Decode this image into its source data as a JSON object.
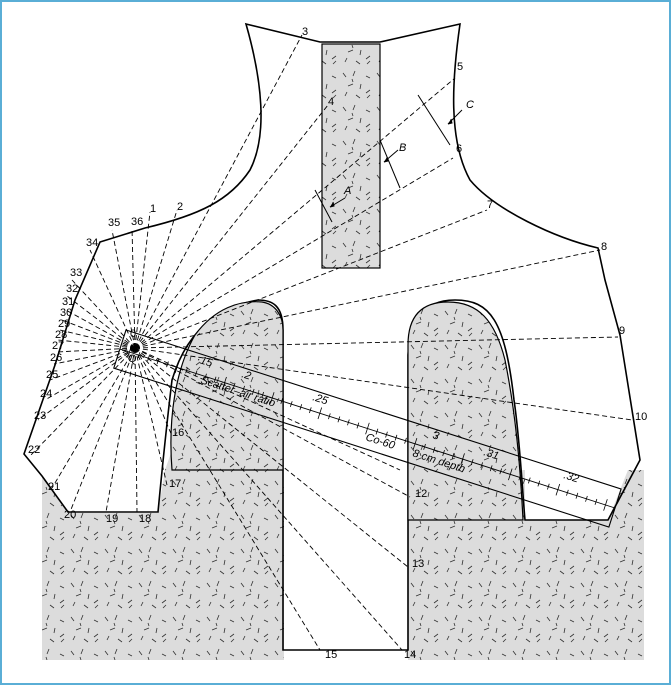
{
  "diagram": {
    "frame_color": "#5aaed6",
    "shield_fill": "#dcdcdc",
    "point_labels": [
      "1",
      "2",
      "3",
      "4",
      "5",
      "6",
      "7",
      "8",
      "9",
      "10",
      "11",
      "12",
      "13",
      "14",
      "15",
      "16",
      "17",
      "18",
      "19",
      "20",
      "21",
      "22",
      "23",
      "24",
      "25",
      "26",
      "27",
      "28",
      "29",
      "30",
      "31",
      "32",
      "33",
      "34",
      "35",
      "36"
    ],
    "depth_markers": [
      "A",
      "B",
      "C"
    ],
    "ruler": {
      "origin_label": "0",
      "q_label": "Q",
      "left_label": "·15",
      "scale_label": "Scatter–air ratio",
      "marks": [
        ".2",
        ".25",
        "3",
        ".31",
        ".32"
      ],
      "source_label": "Co-60",
      "depth_label": "8 cm depth"
    }
  }
}
